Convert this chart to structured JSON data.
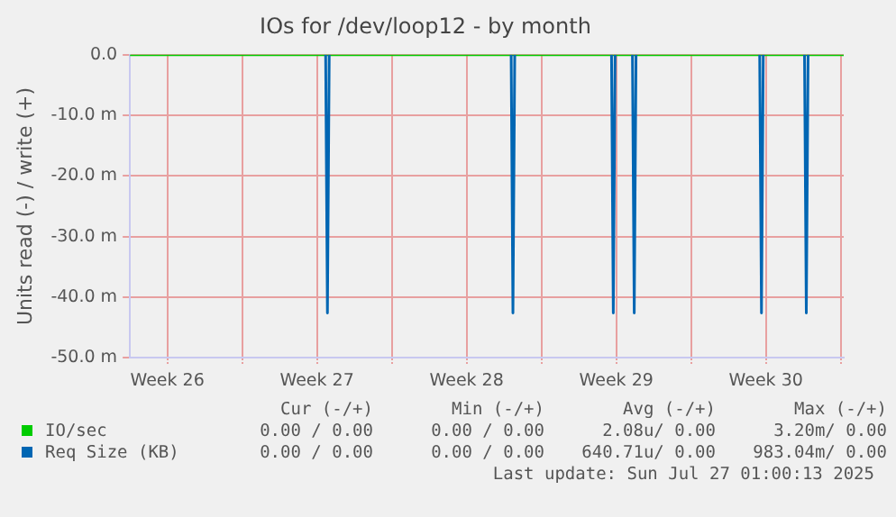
{
  "chart_data": {
    "type": "line",
    "title": "IOs for /dev/loop12 - by month",
    "ylabel": "Units read (-) / write (+)",
    "xlim": [
      "2025-06-24T18:00",
      "2025-07-28T03:20"
    ],
    "xticks": [
      {
        "value": "2025-06-26T12:00",
        "label": "Week 26"
      },
      {
        "value": "2025-06-30",
        "label": null
      },
      {
        "value": "2025-07-03T12:00",
        "label": "Week 27"
      },
      {
        "value": "2025-07-07",
        "label": null
      },
      {
        "value": "2025-07-10T12:00",
        "label": "Week 28"
      },
      {
        "value": "2025-07-14",
        "label": null
      },
      {
        "value": "2025-07-17T12:00",
        "label": "Week 29"
      },
      {
        "value": "2025-07-21",
        "label": null
      },
      {
        "value": "2025-07-24T12:00",
        "label": "Week 30"
      },
      {
        "value": "2025-07-28",
        "label": null
      }
    ],
    "ylim": [
      -50,
      0
    ],
    "yticks": [
      {
        "value": 0,
        "label": "0.0"
      },
      {
        "value": -10,
        "label": "-10.0 m"
      },
      {
        "value": -20,
        "label": "-20.0 m"
      },
      {
        "value": -30,
        "label": "-30.0 m"
      },
      {
        "value": -40,
        "label": "-40.0 m"
      },
      {
        "value": -50,
        "label": "-50.0 m"
      }
    ],
    "grid": true,
    "legend": "bottom",
    "marker": "none",
    "series": [
      {
        "name": "IO/sec",
        "color": "#00cc00",
        "x": [
          "2025-06-24T18:00",
          "2025-07-28T03:20"
        ],
        "values": [
          0,
          0
        ]
      },
      {
        "name": "Req Size (KB)",
        "color": "#0066b3",
        "x": [
          "2025-07-03T21:45",
          "2025-07-03T23:45",
          "2025-07-04T01:45",
          "2025-07-08",
          "2025-07-12T14:00",
          "2025-07-12T16:00",
          "2025-07-12T18:00",
          "2025-07-15",
          "2025-07-17T06:40",
          "2025-07-17T08:40",
          "2025-07-17T10:40",
          "2025-07-18",
          "2025-07-18T06:10",
          "2025-07-18T08:10",
          "2025-07-18T10:10",
          "2025-07-21",
          "2025-07-24T05:00",
          "2025-07-24T07:00",
          "2025-07-24T09:00",
          "2025-07-25",
          "2025-07-26T07:20",
          "2025-07-26T09:20",
          "2025-07-26T11:20"
        ],
        "values": [
          0,
          -42.6,
          0,
          null,
          0,
          -42.6,
          0,
          null,
          0,
          -42.6,
          0,
          null,
          0,
          -42.6,
          0,
          null,
          0,
          -42.6,
          0,
          null,
          0,
          -42.6,
          0
        ]
      }
    ],
    "annotations": [
      "Cur (-/+)",
      "Min (-/+)",
      "Avg (-/+)",
      "Max (-/+)",
      "0.00 / 0.00",
      "0.00 / 0.00",
      "2.08u/ 0.00",
      "3.20m/ 0.00",
      "0.00 / 0.00",
      "0.00 / 0.00",
      "640.71u/ 0.00",
      "983.04m/ 0.00",
      "Last update: Sun Jul 27 01:00:13 2025"
    ]
  }
}
